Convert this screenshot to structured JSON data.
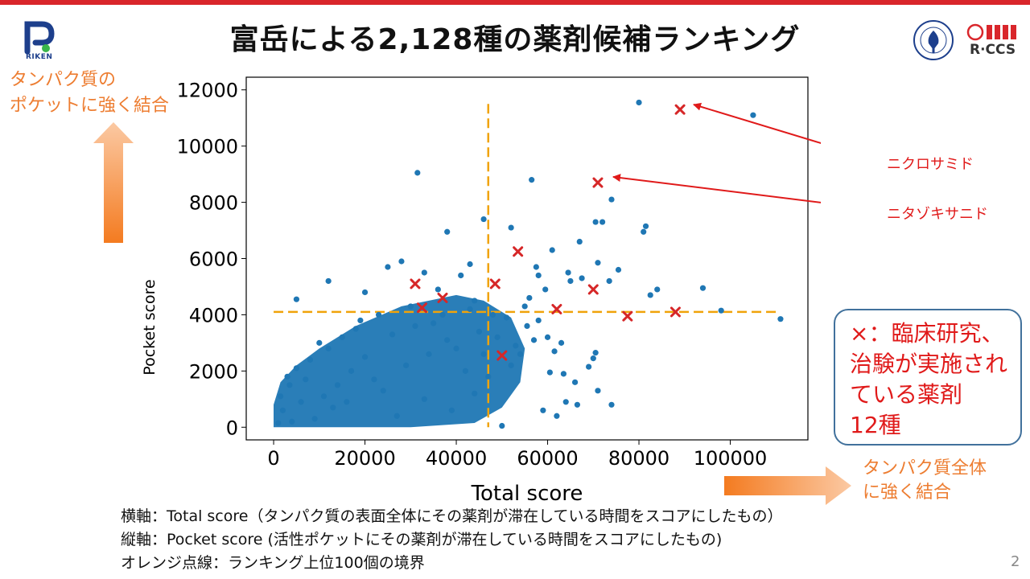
{
  "slide": {
    "title": "富岳による2,128種の薬剤候補ランキング",
    "page_number": "2",
    "logos": {
      "riken": "RIKEN",
      "rccs": "R·CCS"
    },
    "y_side_note": [
      "タンパク質の",
      "ポケットに強く結合"
    ],
    "x_side_note": [
      "タンパク質全体",
      "に強く結合"
    ],
    "drug_labels": [
      "ニクロサミド",
      "ニタゾキサニド"
    ],
    "callout": [
      "×：臨床研究、",
      "治験が実施され",
      "ている薬剤",
      "12種"
    ],
    "notes": [
      "横軸：Total score（タンパク質の表面全体にその薬剤が滞在している時間をスコアにしたもの）",
      "縦軸：Pocket score (活性ポケットにその薬剤が滞在している時間をスコアにしたもの)",
      "オレンジ点線：ランキング上位100個の境界"
    ],
    "colors": {
      "accent_red": "#e01a1a",
      "orange": "#ed7d31",
      "point_blue": "#1f77b4",
      "threshold_orange": "#f0a30a",
      "topbar": "#d9262b"
    }
  },
  "chart_data": {
    "type": "scatter",
    "xlabel": "Total score",
    "ylabel": "Pocket score",
    "xlim": [
      -6000,
      117000
    ],
    "ylim": [
      -450,
      12450
    ],
    "xticks": [
      0,
      20000,
      40000,
      60000,
      80000,
      100000
    ],
    "yticks": [
      0,
      2000,
      4000,
      6000,
      8000,
      10000,
      12000
    ],
    "grid": false,
    "thresholds": {
      "total_score": 47000,
      "pocket_score": 4100
    },
    "series": [
      {
        "marker": "x",
        "color": "#d62728",
        "points": [
          [
            89000,
            11300
          ],
          [
            71000,
            8700
          ],
          [
            53500,
            6250
          ],
          [
            48500,
            5100
          ],
          [
            31000,
            5100
          ],
          [
            37000,
            4600
          ],
          [
            32500,
            4250
          ],
          [
            70000,
            4900
          ],
          [
            62000,
            4200
          ],
          [
            77500,
            3950
          ],
          [
            88000,
            4100
          ],
          [
            50000,
            2550
          ]
        ]
      },
      {
        "marker": "o",
        "color": "#1f77b4",
        "points": [
          [
            80000,
            11550
          ],
          [
            105000,
            11100
          ],
          [
            31500,
            9050
          ],
          [
            56500,
            8800
          ],
          [
            74000,
            8100
          ],
          [
            70500,
            7300
          ],
          [
            72000,
            7300
          ],
          [
            81500,
            7150
          ],
          [
            81000,
            6950
          ],
          [
            38000,
            6950
          ],
          [
            46000,
            7400
          ],
          [
            52000,
            7100
          ],
          [
            67000,
            6600
          ],
          [
            61000,
            6300
          ],
          [
            57500,
            5700
          ],
          [
            64500,
            5500
          ],
          [
            58000,
            5400
          ],
          [
            71000,
            5850
          ],
          [
            75500,
            5600
          ],
          [
            73500,
            5200
          ],
          [
            84000,
            4900
          ],
          [
            94000,
            4950
          ],
          [
            98000,
            4150
          ],
          [
            111000,
            3850
          ],
          [
            82500,
            4700
          ],
          [
            67500,
            5300
          ],
          [
            65000,
            5200
          ],
          [
            59500,
            4900
          ],
          [
            56000,
            4600
          ],
          [
            55000,
            4300
          ],
          [
            61500,
            2700
          ],
          [
            63000,
            3000
          ],
          [
            57000,
            3100
          ],
          [
            70500,
            2650
          ],
          [
            70000,
            2450
          ],
          [
            69000,
            2150
          ],
          [
            60500,
            1950
          ],
          [
            66000,
            1600
          ],
          [
            63500,
            1900
          ],
          [
            71000,
            1300
          ],
          [
            64000,
            900
          ],
          [
            66500,
            800
          ],
          [
            74000,
            800
          ],
          [
            59000,
            600
          ],
          [
            62000,
            400
          ],
          [
            50000,
            50
          ],
          [
            5000,
            4550
          ],
          [
            12000,
            5200
          ],
          [
            20000,
            4800
          ],
          [
            25000,
            5700
          ],
          [
            28000,
            5900
          ],
          [
            33000,
            5500
          ],
          [
            36000,
            4900
          ],
          [
            41000,
            5400
          ],
          [
            44000,
            4500
          ],
          [
            43000,
            5800
          ],
          [
            30000,
            4300
          ],
          [
            23000,
            4000
          ],
          [
            18000,
            3500
          ],
          [
            15000,
            3200
          ],
          [
            12000,
            2800
          ],
          [
            8000,
            2400
          ],
          [
            5000,
            2100
          ],
          [
            3000,
            1800
          ],
          [
            10000,
            3000
          ],
          [
            14000,
            1500
          ],
          [
            20000,
            2500
          ],
          [
            26000,
            3300
          ],
          [
            35000,
            3700
          ],
          [
            40000,
            2800
          ],
          [
            45000,
            3400
          ],
          [
            51000,
            3900
          ],
          [
            49000,
            3200
          ],
          [
            53000,
            2900
          ],
          [
            47000,
            1800
          ],
          [
            44000,
            1200
          ],
          [
            39000,
            600
          ],
          [
            33000,
            1000
          ],
          [
            27000,
            400
          ],
          [
            22000,
            1700
          ],
          [
            16000,
            900
          ],
          [
            9000,
            300
          ],
          [
            4000,
            200
          ],
          [
            1000,
            150
          ],
          [
            2000,
            600
          ],
          [
            6000,
            900
          ],
          [
            11000,
            1100
          ],
          [
            13000,
            700
          ],
          [
            17000,
            2000
          ],
          [
            24000,
            1300
          ],
          [
            29000,
            2200
          ],
          [
            34000,
            2600
          ],
          [
            38000,
            3100
          ],
          [
            42000,
            2000
          ],
          [
            46000,
            2600
          ],
          [
            1500,
            1100
          ],
          [
            3500,
            1500
          ],
          [
            7000,
            1700
          ],
          [
            19000,
            3800
          ],
          [
            31000,
            3600
          ],
          [
            37000,
            4000
          ],
          [
            43000,
            4200
          ],
          [
            48000,
            4000
          ],
          [
            55500,
            3600
          ],
          [
            54000,
            2600
          ],
          [
            52000,
            2200
          ],
          [
            58000,
            3800
          ],
          [
            60000,
            3200
          ]
        ]
      }
    ],
    "cloud_region": [
      [
        0,
        0
      ],
      [
        0,
        800
      ],
      [
        1500,
        1600
      ],
      [
        5000,
        2200
      ],
      [
        10000,
        2800
      ],
      [
        18000,
        3600
      ],
      [
        28000,
        4300
      ],
      [
        40000,
        4700
      ],
      [
        46000,
        4500
      ],
      [
        52000,
        3900
      ],
      [
        55000,
        2800
      ],
      [
        54000,
        1600
      ],
      [
        50000,
        700
      ],
      [
        44000,
        150
      ],
      [
        30000,
        0
      ]
    ]
  }
}
